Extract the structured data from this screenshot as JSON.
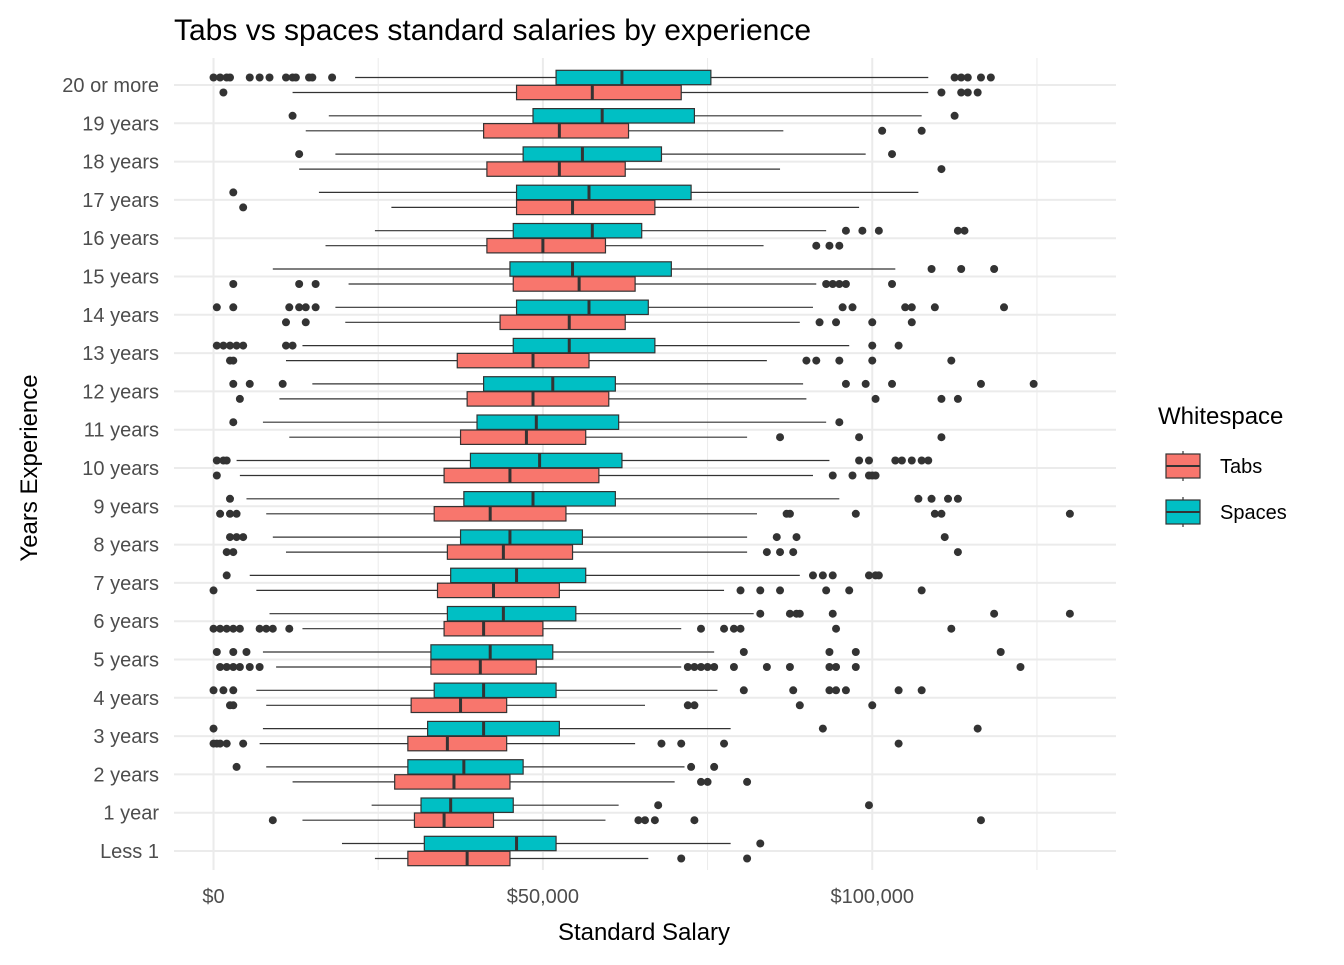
{
  "chart_data": {
    "type": "boxplot",
    "title": "Tabs vs spaces standard salaries by experience",
    "xlabel": "Standard Salary",
    "ylabel": "Years Experience",
    "orientation": "horizontal",
    "xlim": [
      -6000,
      137000
    ],
    "x_ticks": [
      0,
      50000,
      100000
    ],
    "x_tick_labels": [
      "$0",
      "$50,000",
      "$100,000"
    ],
    "grid": true,
    "legend": {
      "title": "Whitespace",
      "position": "right",
      "entries": [
        {
          "name": "Tabs",
          "color": "#F8766D"
        },
        {
          "name": "Spaces",
          "color": "#00BFC4"
        }
      ]
    },
    "categories": [
      "Less 1",
      "1 year",
      "2 years",
      "3 years",
      "4 years",
      "5 years",
      "6 years",
      "7 years",
      "8 years",
      "9 years",
      "10 years",
      "11 years",
      "12 years",
      "13 years",
      "14 years",
      "15 years",
      "16 years",
      "17 years",
      "18 years",
      "19 years",
      "20 or more"
    ],
    "series": [
      {
        "name": "Tabs",
        "color": "#F8766D",
        "boxes": [
          {
            "category": "Less 1",
            "whisker_low": 24500,
            "q1": 29500,
            "median": 38500,
            "q3": 45000,
            "whisker_high": 66000,
            "outliers": [
              71000,
              81000
            ]
          },
          {
            "category": "1 year",
            "whisker_low": 13500,
            "q1": 30500,
            "median": 35000,
            "q3": 42500,
            "whisker_high": 59500,
            "outliers": [
              9000,
              64500,
              65500,
              67000,
              73000,
              116500
            ]
          },
          {
            "category": "2 years",
            "whisker_low": 12000,
            "q1": 27500,
            "median": 36500,
            "q3": 45000,
            "whisker_high": 70000,
            "outliers": [
              74000,
              75000,
              81000
            ]
          },
          {
            "category": "3 years",
            "whisker_low": 7000,
            "q1": 29500,
            "median": 35500,
            "q3": 44500,
            "whisker_high": 64000,
            "outliers": [
              0,
              500,
              1000,
              2000,
              4500,
              68000,
              71000,
              77500,
              104000
            ]
          },
          {
            "category": "4 years",
            "whisker_low": 8000,
            "q1": 30000,
            "median": 37500,
            "q3": 44500,
            "whisker_high": 65500,
            "outliers": [
              2500,
              3000,
              72000,
              73000,
              89000,
              100000
            ]
          },
          {
            "category": "5 years",
            "whisker_low": 9500,
            "q1": 33000,
            "median": 40500,
            "q3": 49000,
            "whisker_high": 71000,
            "outliers": [
              1000,
              2000,
              3000,
              4000,
              5500,
              7000,
              72000,
              73000,
              74000,
              75000,
              76000,
              79000,
              84000,
              87500,
              93500,
              94500,
              97500,
              122500
            ]
          },
          {
            "category": "6 years",
            "whisker_low": 13500,
            "q1": 35000,
            "median": 41000,
            "q3": 50000,
            "whisker_high": 71000,
            "outliers": [
              0,
              1000,
              2000,
              3000,
              4000,
              7000,
              8000,
              9000,
              11500,
              74000,
              77500,
              79000,
              80000,
              94500,
              112000
            ]
          },
          {
            "category": "7 years",
            "whisker_low": 6500,
            "q1": 34000,
            "median": 42500,
            "q3": 52500,
            "whisker_high": 77500,
            "outliers": [
              0,
              80000,
              83000,
              86000,
              93000,
              96500,
              107500
            ]
          },
          {
            "category": "8 years",
            "whisker_low": 11000,
            "q1": 35500,
            "median": 44000,
            "q3": 54500,
            "whisker_high": 81000,
            "outliers": [
              2000,
              3000,
              84000,
              86000,
              88000,
              113000
            ]
          },
          {
            "category": "9 years",
            "whisker_low": 8000,
            "q1": 33500,
            "median": 42000,
            "q3": 53500,
            "whisker_high": 82500,
            "outliers": [
              1000,
              2500,
              3500,
              87000,
              87500,
              97500,
              109500,
              110500,
              130000
            ]
          },
          {
            "category": "10 years",
            "whisker_low": 4000,
            "q1": 35000,
            "median": 45000,
            "q3": 58500,
            "whisker_high": 91000,
            "outliers": [
              500,
              94000,
              97000,
              99500,
              100000,
              100500
            ]
          },
          {
            "category": "11 years",
            "whisker_low": 11500,
            "q1": 37500,
            "median": 47500,
            "q3": 56500,
            "whisker_high": 81000,
            "outliers": [
              86000,
              98000,
              110500
            ]
          },
          {
            "category": "12 years",
            "whisker_low": 10000,
            "q1": 38500,
            "median": 48500,
            "q3": 60000,
            "whisker_high": 90000,
            "outliers": [
              4000,
              100500,
              110500,
              113000
            ]
          },
          {
            "category": "13 years",
            "whisker_low": 11000,
            "q1": 37000,
            "median": 48500,
            "q3": 57000,
            "whisker_high": 84000,
            "outliers": [
              2500,
              3000,
              90000,
              91500,
              95000,
              100000,
              112000
            ]
          },
          {
            "category": "14 years",
            "whisker_low": 20000,
            "q1": 43500,
            "median": 54000,
            "q3": 62500,
            "whisker_high": 89000,
            "outliers": [
              11000,
              14000,
              92000,
              94500,
              100000,
              106000
            ]
          },
          {
            "category": "15 years",
            "whisker_low": 20500,
            "q1": 45500,
            "median": 55500,
            "q3": 64000,
            "whisker_high": 91500,
            "outliers": [
              3000,
              13000,
              15500,
              93000,
              94000,
              95000,
              96000,
              103000
            ]
          },
          {
            "category": "16 years",
            "whisker_low": 17000,
            "q1": 41500,
            "median": 50000,
            "q3": 59500,
            "whisker_high": 83500,
            "outliers": [
              91500,
              93500,
              95000
            ]
          },
          {
            "category": "17 years",
            "whisker_low": 27000,
            "q1": 46000,
            "median": 54500,
            "q3": 67000,
            "whisker_high": 98000,
            "outliers": [
              4500
            ]
          },
          {
            "category": "18 years",
            "whisker_low": 13000,
            "q1": 41500,
            "median": 52500,
            "q3": 62500,
            "whisker_high": 86000,
            "outliers": [
              110500
            ]
          },
          {
            "category": "19 years",
            "whisker_low": 14000,
            "q1": 41000,
            "median": 52500,
            "q3": 63000,
            "whisker_high": 86500,
            "outliers": [
              101500,
              107500
            ]
          },
          {
            "category": "20 or more",
            "whisker_low": 12000,
            "q1": 46000,
            "median": 57500,
            "q3": 71000,
            "whisker_high": 108500,
            "outliers": [
              1500,
              110500,
              113500,
              114500,
              116000
            ]
          }
        ]
      },
      {
        "name": "Spaces",
        "color": "#00BFC4",
        "boxes": [
          {
            "category": "Less 1",
            "whisker_low": 19500,
            "q1": 32000,
            "median": 46000,
            "q3": 52000,
            "whisker_high": 78500,
            "outliers": [
              83000
            ]
          },
          {
            "category": "1 year",
            "whisker_low": 24000,
            "q1": 31500,
            "median": 36000,
            "q3": 45500,
            "whisker_high": 61500,
            "outliers": [
              67500,
              99500
            ]
          },
          {
            "category": "2 years",
            "whisker_low": 8000,
            "q1": 29500,
            "median": 38000,
            "q3": 47000,
            "whisker_high": 71500,
            "outliers": [
              3500,
              72500,
              76000
            ]
          },
          {
            "category": "3 years",
            "whisker_low": 7500,
            "q1": 32500,
            "median": 41000,
            "q3": 52500,
            "whisker_high": 78500,
            "outliers": [
              0,
              92500,
              116000
            ]
          },
          {
            "category": "4 years",
            "whisker_low": 6500,
            "q1": 33500,
            "median": 41000,
            "q3": 52000,
            "whisker_high": 76500,
            "outliers": [
              0,
              1500,
              3000,
              80500,
              88000,
              93500,
              94500,
              96000,
              104000,
              107500
            ]
          },
          {
            "category": "5 years",
            "whisker_low": 7500,
            "q1": 33000,
            "median": 42000,
            "q3": 51500,
            "whisker_high": 76000,
            "outliers": [
              500,
              3000,
              5000,
              80500,
              93500,
              97500,
              119500
            ]
          },
          {
            "category": "6 years",
            "whisker_low": 8500,
            "q1": 35500,
            "median": 44000,
            "q3": 55000,
            "whisker_high": 82000,
            "outliers": [
              83000,
              87500,
              88500,
              89000,
              94000,
              118500,
              130000
            ]
          },
          {
            "category": "7 years",
            "whisker_low": 5500,
            "q1": 36000,
            "median": 46000,
            "q3": 56500,
            "whisker_high": 89000,
            "outliers": [
              2000,
              91000,
              92500,
              94000,
              99500,
              100500,
              101000
            ]
          },
          {
            "category": "8 years",
            "whisker_low": 9000,
            "q1": 37500,
            "median": 45000,
            "q3": 56000,
            "whisker_high": 81000,
            "outliers": [
              2500,
              3500,
              4500,
              85500,
              88500,
              111000
            ]
          },
          {
            "category": "9 years",
            "whisker_low": 5000,
            "q1": 38000,
            "median": 48500,
            "q3": 61000,
            "whisker_high": 95000,
            "outliers": [
              2500,
              107000,
              109000,
              111500,
              113000
            ]
          },
          {
            "category": "10 years",
            "whisker_low": 3500,
            "q1": 39000,
            "median": 49500,
            "q3": 62000,
            "whisker_high": 93500,
            "outliers": [
              500,
              1500,
              2000,
              98000,
              99500,
              103500,
              104500,
              106000,
              107500,
              108500
            ]
          },
          {
            "category": "11 years",
            "whisker_low": 7500,
            "q1": 40000,
            "median": 49000,
            "q3": 61500,
            "whisker_high": 93000,
            "outliers": [
              3000,
              95000
            ]
          },
          {
            "category": "12 years",
            "whisker_low": 15000,
            "q1": 41000,
            "median": 51500,
            "q3": 61000,
            "whisker_high": 89500,
            "outliers": [
              3000,
              5500,
              10500,
              96000,
              99000,
              103000,
              116500,
              124500
            ]
          },
          {
            "category": "13 years",
            "whisker_low": 13500,
            "q1": 45500,
            "median": 54000,
            "q3": 67000,
            "whisker_high": 96500,
            "outliers": [
              500,
              1500,
              2500,
              3500,
              4500,
              11000,
              12000,
              100000,
              104000
            ]
          },
          {
            "category": "14 years",
            "whisker_low": 18500,
            "q1": 46000,
            "median": 57000,
            "q3": 66000,
            "whisker_high": 91000,
            "outliers": [
              500,
              3000,
              11500,
              13000,
              14000,
              15500,
              95500,
              97000,
              105000,
              106000,
              109500,
              120000
            ]
          },
          {
            "category": "15 years",
            "whisker_low": 9000,
            "q1": 45000,
            "median": 54500,
            "q3": 69500,
            "whisker_high": 103500,
            "outliers": [
              109000,
              113500,
              118500
            ]
          },
          {
            "category": "16 years",
            "whisker_low": 24500,
            "q1": 45500,
            "median": 57500,
            "q3": 65000,
            "whisker_high": 93000,
            "outliers": [
              96000,
              98500,
              101000,
              113000,
              114000
            ]
          },
          {
            "category": "17 years",
            "whisker_low": 16000,
            "q1": 46000,
            "median": 57000,
            "q3": 72500,
            "whisker_high": 107000,
            "outliers": [
              3000
            ]
          },
          {
            "category": "18 years",
            "whisker_low": 18500,
            "q1": 47000,
            "median": 56000,
            "q3": 68000,
            "whisker_high": 99000,
            "outliers": [
              13000,
              103000
            ]
          },
          {
            "category": "19 years",
            "whisker_low": 17500,
            "q1": 48500,
            "median": 59000,
            "q3": 73000,
            "whisker_high": 107500,
            "outliers": [
              12000,
              112500
            ]
          },
          {
            "category": "20 or more",
            "whisker_low": 21500,
            "q1": 52000,
            "median": 62000,
            "q3": 75500,
            "whisker_high": 108500,
            "outliers": [
              0,
              1000,
              2000,
              2500,
              5500,
              7000,
              8500,
              11000,
              12000,
              12500,
              14500,
              15000,
              18000,
              112500,
              113500,
              114500,
              116500,
              118000
            ]
          }
        ]
      }
    ]
  }
}
